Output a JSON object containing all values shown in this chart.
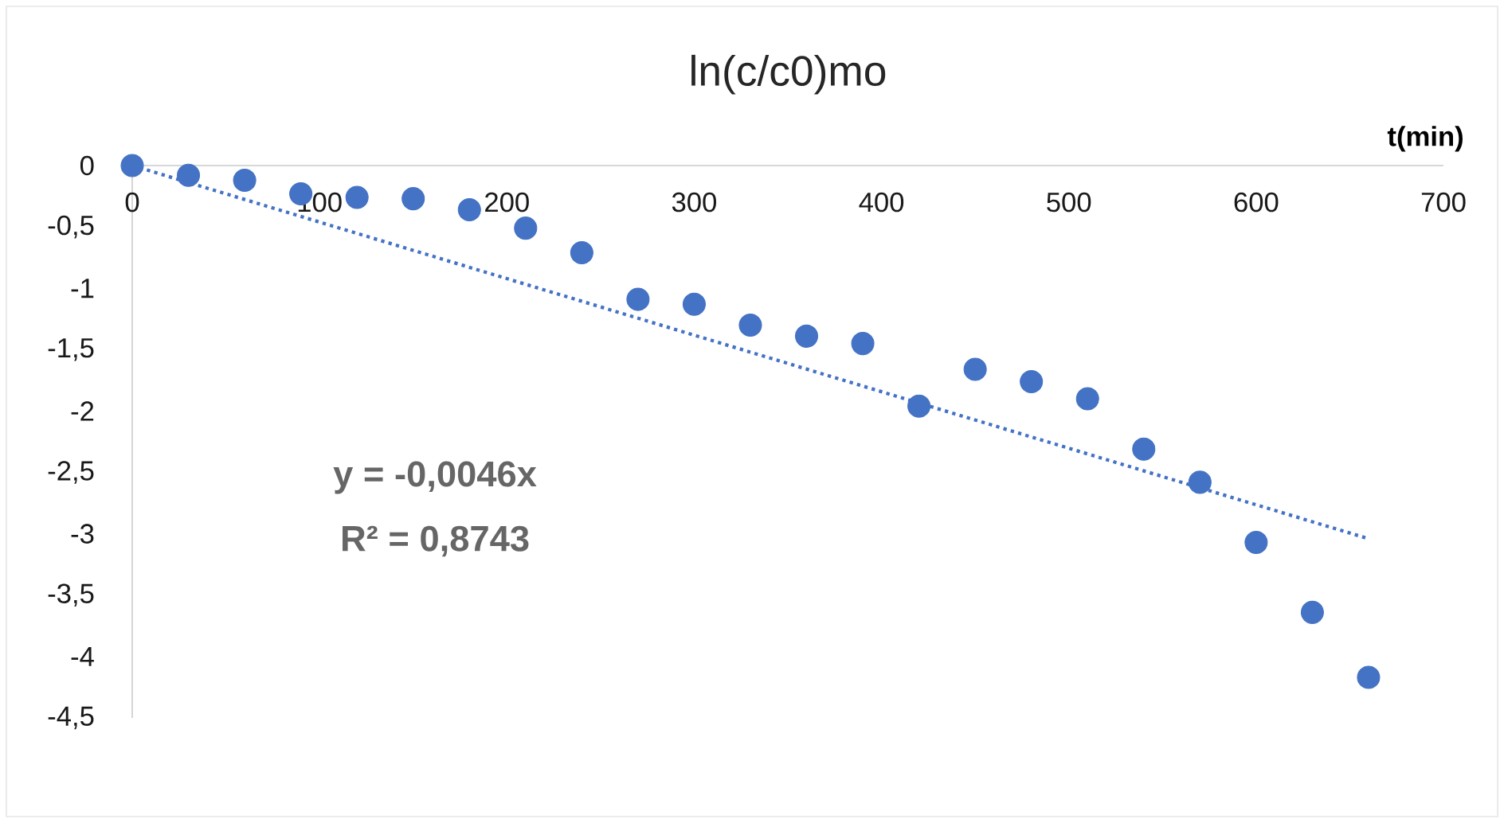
{
  "chart_data": {
    "type": "scatter",
    "title": "ln(c/c0)mo",
    "xlabel": "t(min)",
    "series": [
      {
        "color": "#4472c4",
        "x": [
          0,
          30,
          60,
          90,
          120,
          150,
          180,
          210,
          240,
          270,
          300,
          330,
          360,
          390,
          420,
          450,
          480,
          510,
          540,
          570,
          600,
          630,
          660
        ],
        "values": [
          0,
          -0.08,
          -0.12,
          -0.23,
          -0.26,
          -0.27,
          -0.36,
          -0.51,
          -0.71,
          -1.09,
          -1.13,
          -1.3,
          -1.39,
          -1.45,
          -1.96,
          -1.66,
          -1.76,
          -1.9,
          -2.31,
          -2.58,
          -3.07,
          -3.64,
          -4.17
        ]
      },
      {
        "type": "line",
        "color": "#4472c4",
        "line_style": "dotted",
        "marker": "none",
        "x": [
          0,
          660
        ],
        "values": [
          0,
          -3.04
        ]
      }
    ],
    "marker": "circle",
    "xlim": [
      0,
      700
    ],
    "xticks": [
      0,
      100,
      200,
      300,
      400,
      500,
      600,
      700
    ],
    "ylim": [
      -4.5,
      0
    ],
    "yticks": [
      {
        "value": 0,
        "label": "0"
      },
      {
        "value": -0.5,
        "label": "-0,5"
      },
      {
        "value": -1,
        "label": "-1"
      },
      {
        "value": -1.5,
        "label": "-1,5"
      },
      {
        "value": -2,
        "label": "-2"
      },
      {
        "value": -2.5,
        "label": "-2,5"
      },
      {
        "value": -3,
        "label": "-3"
      },
      {
        "value": -3.5,
        "label": "-3,5"
      },
      {
        "value": -4,
        "label": "-4"
      },
      {
        "value": -4.5,
        "label": "-4,5"
      }
    ],
    "annotations": [
      "y = -0,0046x",
      "R² = 0,8743"
    ]
  }
}
